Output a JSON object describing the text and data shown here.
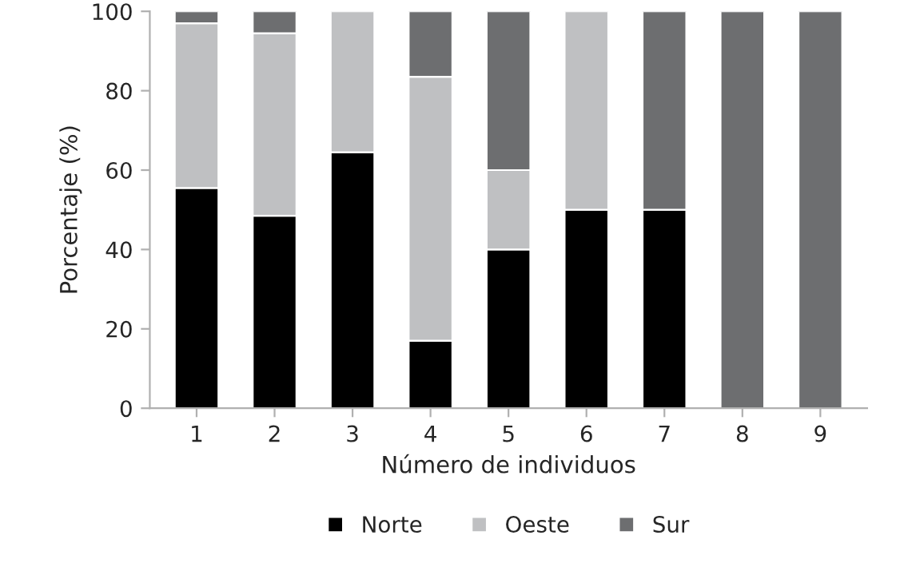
{
  "chart_data": {
    "type": "bar",
    "stacked": true,
    "xlabel": "Número de individuos",
    "ylabel": "Porcentaje (%)",
    "categories": [
      "1",
      "2",
      "3",
      "4",
      "5",
      "6",
      "7",
      "8",
      "9"
    ],
    "series": [
      {
        "name": "Norte",
        "color": "#000000",
        "values": [
          55.5,
          48.5,
          64.5,
          17,
          40,
          50,
          50,
          0,
          0
        ]
      },
      {
        "name": "Oeste",
        "color": "#bfc0c2",
        "values": [
          41.5,
          46,
          35.5,
          66.5,
          20,
          50,
          0,
          0,
          0
        ]
      },
      {
        "name": "Sur",
        "color": "#6d6e70",
        "values": [
          3,
          5.5,
          0,
          16.5,
          40,
          0,
          50,
          100,
          100
        ]
      }
    ],
    "ylim": [
      0,
      100
    ],
    "yticks": [
      0,
      20,
      40,
      60,
      80,
      100
    ],
    "grid": false,
    "legend": "bottom"
  }
}
